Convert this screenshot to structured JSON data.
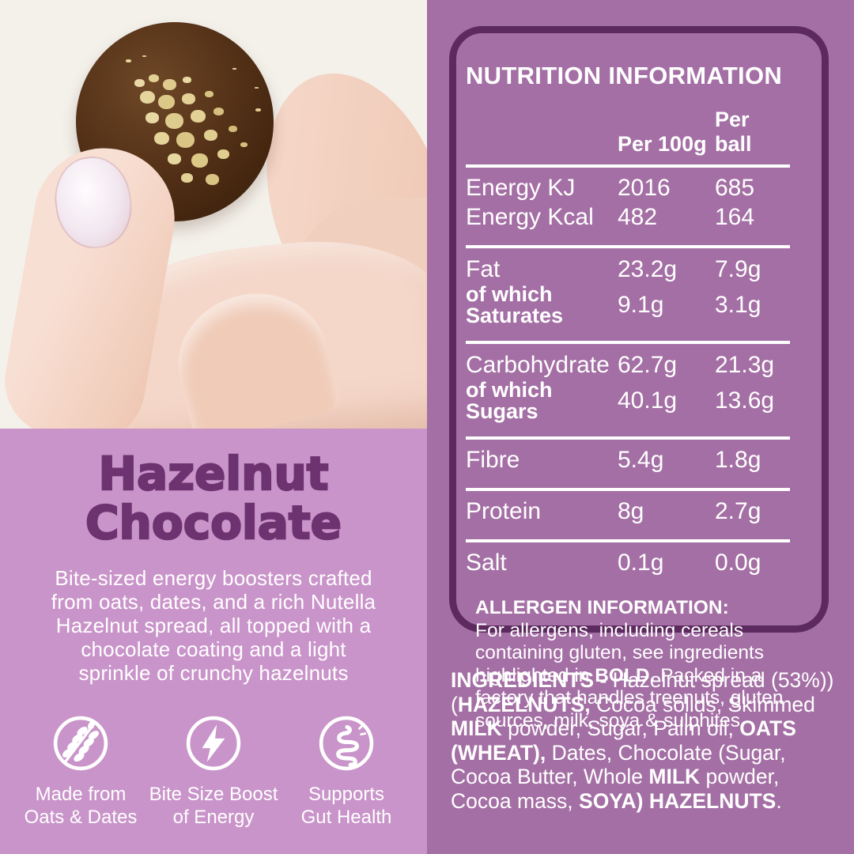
{
  "colors": {
    "cream_bg": "#F4F1EB",
    "lilac_bg": "#C994C9",
    "panel_purple": "#A46FA4",
    "card_border_purple": "#5C2A5E",
    "title_purple": "#6C3370",
    "text_white": "#FFFFFF",
    "chocolate_brown": "#472811",
    "crumb_yellow": "#E2D094"
  },
  "left": {
    "title_line1": "Hazelnut",
    "title_line2": "Chocolate",
    "description_lines": [
      "Bite-sized energy boosters crafted",
      "from oats, dates, and a rich Nutella",
      "Hazelnut spread, all topped with a",
      "chocolate coating and a light",
      "sprinkle of crunchy hazelnuts"
    ],
    "features": [
      {
        "icon": "wheat-icon",
        "label_line1": "Made from",
        "label_line2": "Oats & Dates"
      },
      {
        "icon": "lightning-icon",
        "label_line1": "Bite Size Boost",
        "label_line2": "of Energy"
      },
      {
        "icon": "gut-icon",
        "label_line1": "Supports",
        "label_line2": "Gut Health"
      }
    ]
  },
  "nutrition": {
    "title": "NUTRITION INFORMATION",
    "columns": {
      "per100": "Per 100g",
      "ball": "Per ball"
    },
    "energy": {
      "kj_label": "Energy KJ",
      "kj_100": "2016",
      "kj_ball": "685",
      "kcal_label": "Energy Kcal",
      "kcal_100": "482",
      "kcal_ball": "164"
    },
    "fat": {
      "label": "Fat",
      "per100": "23.2g",
      "ball": "7.9g",
      "sub1": "of which",
      "sub2": "Saturates",
      "sub_100": "9.1g",
      "sub_ball": "3.1g"
    },
    "carbohydrate": {
      "label": "Carbohydrate",
      "per100": "62.7g",
      "ball": "21.3g",
      "sub1": "of which",
      "sub2": "Sugars",
      "sub_100": "40.1g",
      "sub_ball": "13.6g"
    },
    "fibre": {
      "label": "Fibre",
      "per100": "5.4g",
      "ball": "1.8g"
    },
    "protein": {
      "label": "Protein",
      "per100": "8g",
      "ball": "2.7g"
    },
    "salt": {
      "label": "Salt",
      "per100": "0.1g",
      "ball": "0.0g"
    },
    "allergen_title": "ALLERGEN INFORMATION:",
    "allergen_segments": [
      {
        "t": "For allergens, including cereals containing gluten, see ingredients highlighted in ",
        "b": false
      },
      {
        "t": "BOLD.",
        "b": true
      },
      {
        "t": " Packed in a factory that handles treenuts, gluten sources, milk, soya & sulphites",
        "b": false
      }
    ]
  },
  "ingredients_segments": [
    {
      "t": "INGREDIENTS - ",
      "b": true
    },
    {
      "t": "Hazelnut spread (53%))(",
      "b": false
    },
    {
      "t": "HAZELNUTS,",
      "b": true
    },
    {
      "t": " Cocoa solids, Skimmed ",
      "b": false
    },
    {
      "t": "MILK",
      "b": true
    },
    {
      "t": " powder, Sugar, Palm oil, ",
      "b": false
    },
    {
      "t": "OATS (WHEAT),",
      "b": true
    },
    {
      "t": " Dates, Chocolate (Sugar, Cocoa Butter, Whole ",
      "b": false
    },
    {
      "t": "MILK",
      "b": true
    },
    {
      "t": " powder, Cocoa mass, ",
      "b": false
    },
    {
      "t": "SOYA) HAZELNUTS",
      "b": true
    },
    {
      "t": ".",
      "b": false
    }
  ]
}
